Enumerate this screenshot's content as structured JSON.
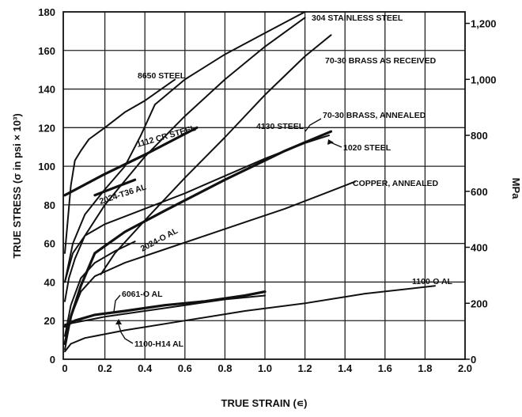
{
  "chart_data": {
    "type": "line",
    "title": "",
    "xlabel": "TRUE STRAIN (∊)",
    "ylabel": "TRUE STRESS (σ in psi × 10³)",
    "y2label": "MPa",
    "xlim": [
      0,
      2.0
    ],
    "ylim": [
      0,
      180
    ],
    "grid": true,
    "x_ticks": [
      "0",
      "0.2",
      "0.4",
      "0.6",
      "0.8",
      "1.0",
      "1.2",
      "1.4",
      "1.6",
      "1.8",
      "2.0"
    ],
    "y_ticks": [
      "0",
      "20",
      "40",
      "60",
      "80",
      "100",
      "120",
      "140",
      "160",
      "180"
    ],
    "y2_ticks": [
      "0",
      "200",
      "400",
      "600",
      "800",
      "1,000",
      "1,200"
    ],
    "series": [
      {
        "name": "304 STAINLESS STEEL",
        "x": [
          0,
          0.02,
          0.05,
          0.1,
          0.2,
          0.4,
          0.6,
          0.8,
          1.0,
          1.2
        ],
        "y": [
          30,
          42,
          52,
          64,
          80,
          105,
          126,
          145,
          162,
          177
        ]
      },
      {
        "name": "70-30 BRASS AS RECEIVED",
        "x": [
          0.18,
          0.25,
          0.4,
          0.6,
          0.8,
          1.0,
          1.2,
          1.33
        ],
        "y": [
          44,
          55,
          72,
          94,
          115,
          137,
          157,
          168
        ]
      },
      {
        "name": "8650 STEEL",
        "x": [
          0,
          0.03,
          0.05,
          0.08,
          0.12,
          0.2,
          0.3,
          0.4,
          0.55
        ],
        "y": [
          55,
          90,
          103,
          108,
          114,
          120,
          128,
          134,
          145
        ]
      },
      {
        "name": "1112 CR STEEL",
        "x": [
          0,
          0.2,
          0.4,
          0.66
        ],
        "y": [
          85,
          96,
          106,
          120
        ],
        "bold": true
      },
      {
        "name": "4130 STEEL",
        "x": [
          0,
          0.04,
          0.1,
          0.2,
          0.3,
          0.38,
          0.45,
          0.6,
          0.8,
          1.0,
          1.2
        ],
        "y": [
          40,
          60,
          75,
          88,
          100,
          116,
          132,
          145,
          158,
          169,
          180
        ]
      },
      {
        "name": "2024-T36 AL",
        "x": [
          0.15,
          0.35
        ],
        "y": [
          85,
          93
        ],
        "bold": true
      },
      {
        "name": "70-30 BRASS, ANNEALED",
        "x": [
          0,
          0.03,
          0.08,
          0.15,
          0.3,
          0.5,
          0.8,
          1.1,
          1.33
        ],
        "y": [
          8,
          22,
          38,
          55,
          66,
          77,
          93,
          108,
          118
        ],
        "bold": true
      },
      {
        "name": "1020 STEEL",
        "x": [
          0,
          0.04,
          0.1,
          0.2,
          0.4,
          0.6,
          0.8,
          1.0,
          1.2,
          1.32
        ],
        "y": [
          40,
          55,
          64,
          70,
          78,
          86,
          95,
          104,
          112,
          116
        ]
      },
      {
        "name": "2024-O AL",
        "x": [
          0,
          0.03,
          0.08,
          0.15,
          0.25,
          0.35
        ],
        "y": [
          12,
          28,
          42,
          50,
          56,
          61
        ]
      },
      {
        "name": "COPPER, ANNEALED",
        "x": [
          0,
          0.03,
          0.08,
          0.15,
          0.3,
          0.5,
          0.7,
          0.9,
          1.1,
          1.3,
          1.45
        ],
        "y": [
          5,
          22,
          35,
          43,
          50,
          57,
          64,
          71,
          78,
          86,
          92
        ]
      },
      {
        "name": "6061-O AL",
        "x": [
          0,
          0.05,
          0.15,
          0.3,
          0.5,
          0.7,
          0.9,
          1.0
        ],
        "y": [
          17,
          20,
          23,
          25,
          28,
          30,
          33,
          35
        ],
        "bold": true
      },
      {
        "name": "1100-H14 AL",
        "x": [
          0,
          0.05,
          0.2,
          0.4,
          0.6,
          0.8,
          1.0
        ],
        "y": [
          18,
          19,
          22,
          25,
          28,
          31,
          33
        ]
      },
      {
        "name": "1100-O AL",
        "x": [
          0,
          0.03,
          0.1,
          0.3,
          0.6,
          0.9,
          1.2,
          1.5,
          1.85
        ],
        "y": [
          4,
          8,
          11,
          15,
          20,
          25,
          29,
          34,
          38
        ]
      }
    ]
  }
}
